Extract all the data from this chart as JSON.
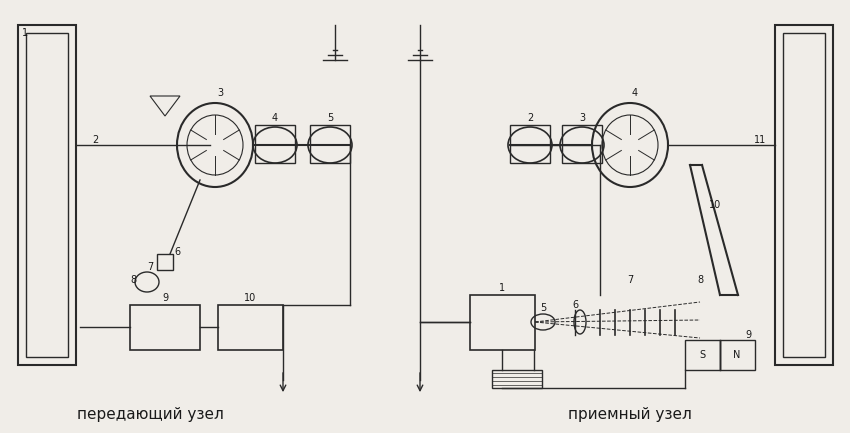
{
  "background_color": "#f0ede8",
  "line_color": "#2a2a2a",
  "text_color": "#1a1a1a",
  "title_left": "передающий узел",
  "title_right": "приемный узел",
  "fig_width": 8.5,
  "fig_height": 4.33,
  "dpi": 100
}
